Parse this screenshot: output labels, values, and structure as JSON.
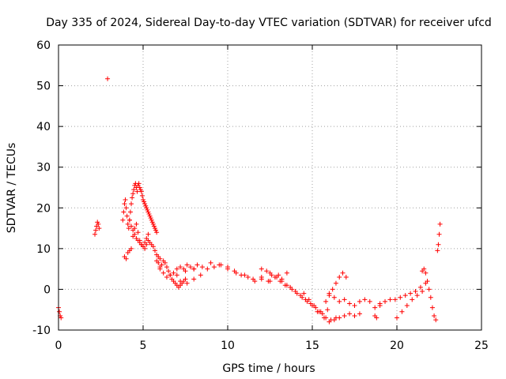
{
  "chart_data": {
    "type": "scatter",
    "title": "Day 335 of 2024, Sidereal Day-to-day VTEC variation (SDTVAR) for receiver ufcd",
    "xlabel": "GPS time / hours",
    "ylabel": "SDTVAR / TECUs",
    "xlim": [
      0,
      25
    ],
    "ylim": [
      -10,
      60
    ],
    "xticks": [
      0,
      5,
      10,
      15,
      20,
      25
    ],
    "yticks": [
      -10,
      0,
      10,
      20,
      30,
      40,
      50,
      60
    ],
    "grid": true,
    "marker": "+",
    "color": "#ff0000",
    "series": [
      {
        "name": "SDTVAR",
        "x": [
          0.0,
          0.05,
          0.1,
          0.15,
          2.15,
          2.2,
          2.25,
          2.3,
          2.35,
          2.4,
          2.9,
          3.8,
          3.85,
          3.9,
          3.95,
          4.0,
          4.05,
          4.1,
          4.15,
          4.2,
          4.25,
          4.3,
          4.35,
          4.4,
          4.45,
          4.5,
          4.55,
          4.6,
          4.65,
          4.7,
          4.75,
          4.8,
          4.85,
          4.9,
          4.95,
          5.0,
          5.05,
          5.1,
          5.15,
          5.2,
          5.25,
          5.3,
          5.35,
          5.4,
          5.45,
          5.5,
          5.55,
          5.6,
          5.65,
          5.7,
          5.75,
          5.8,
          3.9,
          4.0,
          4.1,
          4.2,
          4.3,
          4.4,
          4.5,
          4.6,
          4.7,
          4.8,
          4.9,
          5.0,
          5.1,
          5.2,
          5.3,
          4.2,
          4.3,
          4.4,
          4.5,
          4.6,
          4.7,
          4.8,
          4.9,
          5.0,
          5.1,
          5.2,
          5.3,
          5.4,
          5.5,
          5.6,
          5.7,
          5.8,
          5.9,
          6.0,
          5.8,
          5.9,
          6.0,
          6.1,
          6.2,
          6.3,
          6.4,
          6.5,
          6.6,
          6.7,
          6.8,
          6.9,
          7.0,
          7.1,
          7.2,
          7.3,
          7.4,
          7.5,
          6.0,
          6.2,
          6.4,
          6.6,
          6.8,
          7.0,
          7.2,
          7.4,
          7.6,
          7.8,
          8.0,
          8.2,
          7.0,
          7.5,
          8.0,
          8.5,
          9.0,
          9.5,
          10.0,
          10.5,
          11.0,
          11.5,
          12.0,
          12.5,
          13.0,
          13.5,
          7.2,
          7.6,
          8.0,
          8.4,
          8.8,
          9.2,
          9.6,
          10.0,
          10.4,
          10.8,
          11.2,
          11.6,
          12.0,
          12.4,
          12.8,
          13.2,
          12.0,
          12.3,
          12.6,
          12.9,
          13.2,
          13.5,
          13.8,
          14.1,
          14.4,
          14.7,
          15.0,
          15.3,
          15.6,
          15.9,
          12.5,
          12.8,
          13.1,
          13.4,
          13.7,
          14.0,
          14.3,
          14.6,
          14.9,
          15.2,
          15.5,
          15.8,
          16.1,
          16.4,
          14.5,
          14.8,
          15.1,
          15.4,
          15.7,
          16.0,
          16.3,
          16.6,
          16.9,
          17.2,
          17.5,
          17.8,
          15.8,
          16.0,
          16.2,
          16.4,
          16.6,
          16.8,
          17.0,
          16.0,
          16.3,
          16.6,
          16.9,
          17.2,
          17.5,
          17.8,
          18.1,
          18.4,
          18.7,
          19.0,
          18.7,
          18.8,
          19.0,
          19.3,
          19.6,
          19.9,
          20.2,
          20.5,
          20.8,
          21.1,
          21.4,
          21.7,
          20.0,
          20.3,
          20.6,
          20.9,
          21.2,
          21.5,
          21.5,
          21.6,
          21.7,
          21.8,
          21.9,
          22.0,
          22.1,
          22.2,
          22.3,
          22.4,
          22.45,
          22.5,
          22.55
        ],
        "y": [
          -4.5,
          -5.5,
          -6.5,
          -7.0,
          13.5,
          14.5,
          15.5,
          16.5,
          16.0,
          15.0,
          51.7,
          17.0,
          19.0,
          21.0,
          22.0,
          20.0,
          18.0,
          16.0,
          15.0,
          17.0,
          19.0,
          21.0,
          22.5,
          23.5,
          24.5,
          25.5,
          26.0,
          25.0,
          24.0,
          25.5,
          26.0,
          25.0,
          24.5,
          24.0,
          23.0,
          22.0,
          21.5,
          21.0,
          20.5,
          20.0,
          19.5,
          19.0,
          18.5,
          18.0,
          17.5,
          17.0,
          16.5,
          16.0,
          15.5,
          15.0,
          14.5,
          14.0,
          8.0,
          7.5,
          9.0,
          9.5,
          10.0,
          13.0,
          15.0,
          16.0,
          14.0,
          12.0,
          11.0,
          10.5,
          11.5,
          12.5,
          13.5,
          17.0,
          15.5,
          14.5,
          13.5,
          12.5,
          12.0,
          11.5,
          11.0,
          10.5,
          10.0,
          11.0,
          12.0,
          11.5,
          11.0,
          10.5,
          9.5,
          8.5,
          8.0,
          7.5,
          7.0,
          6.5,
          5.5,
          6.0,
          7.0,
          6.5,
          5.5,
          4.5,
          3.5,
          2.5,
          2.0,
          1.5,
          1.0,
          0.5,
          1.0,
          1.5,
          2.0,
          2.5,
          5.0,
          4.0,
          3.0,
          3.5,
          4.0,
          5.0,
          5.5,
          5.0,
          6.0,
          5.5,
          5.0,
          6.0,
          3.5,
          4.5,
          5.0,
          5.5,
          6.5,
          6.0,
          5.5,
          4.0,
          3.5,
          2.5,
          3.0,
          2.0,
          3.5,
          4.0,
          2.0,
          1.5,
          2.5,
          3.5,
          5.0,
          5.5,
          6.0,
          5.0,
          4.5,
          3.5,
          3.0,
          2.0,
          2.5,
          2.0,
          3.0,
          2.5,
          5.0,
          4.5,
          3.5,
          3.0,
          2.0,
          1.0,
          0.0,
          -1.0,
          -2.0,
          -3.0,
          -4.0,
          -5.5,
          -6.0,
          -5.0,
          4.0,
          3.0,
          2.0,
          1.0,
          0.5,
          -0.5,
          -1.5,
          -2.5,
          -3.5,
          -4.5,
          -5.5,
          -7.0,
          -7.5,
          -7.0,
          -1.0,
          -2.5,
          -4.0,
          -5.5,
          -7.0,
          -8.0,
          -7.5,
          -7.0,
          -6.5,
          -6.0,
          -6.5,
          -6.0,
          -3.0,
          -1.5,
          0.0,
          1.5,
          3.0,
          4.0,
          3.0,
          -1.0,
          -2.0,
          -3.0,
          -2.5,
          -3.5,
          -4.0,
          -3.0,
          -2.5,
          -3.0,
          -4.5,
          -4.0,
          -6.5,
          -7.0,
          -3.5,
          -3.0,
          -2.5,
          -2.5,
          -2.0,
          -1.5,
          -1.0,
          -0.5,
          0.5,
          1.5,
          -7.0,
          -5.5,
          -4.0,
          -2.5,
          -1.5,
          -0.5,
          4.5,
          5.0,
          4.0,
          2.0,
          0.0,
          -2.0,
          -4.5,
          -6.5,
          -7.5,
          9.5,
          11.0,
          13.5,
          16.0
        ]
      }
    ]
  }
}
